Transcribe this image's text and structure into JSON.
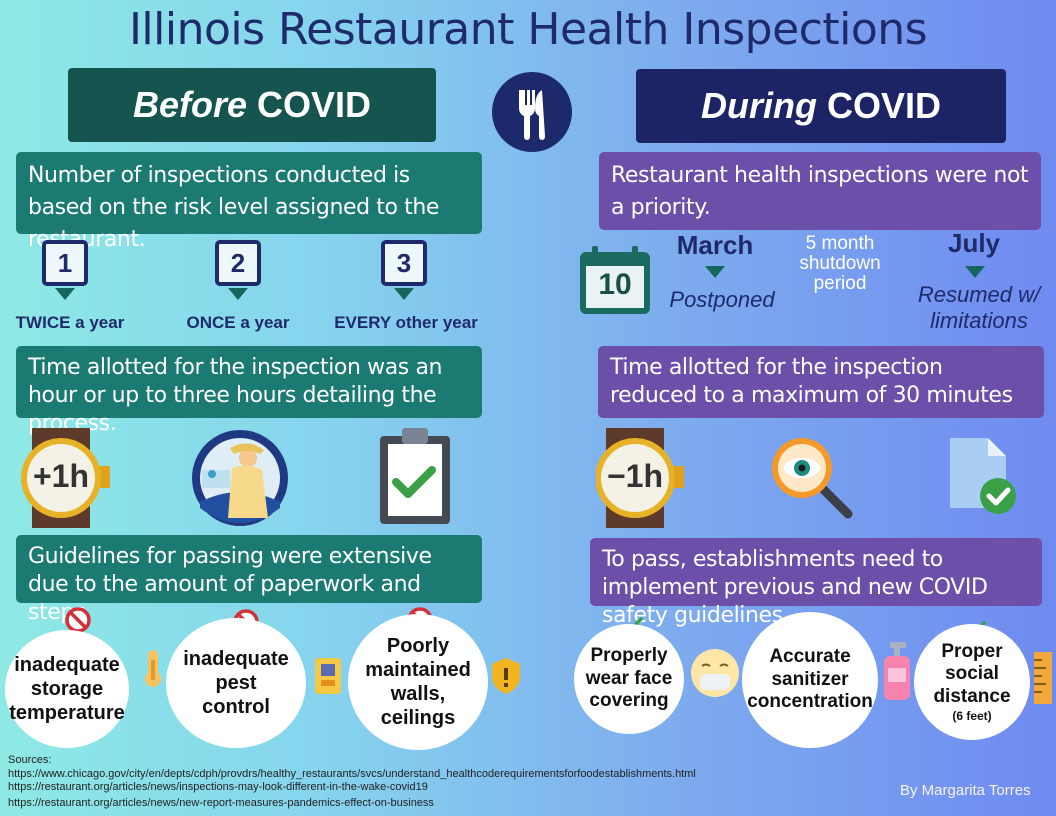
{
  "title": "Illinois Restaurant Health Inspections",
  "before": {
    "header_italic": "Before",
    "header_rest": "COVID",
    "box1": "Number of inspections conducted is based on the risk level assigned to the restaurant.",
    "levels": [
      {
        "num": "1",
        "freq": "TWICE a year"
      },
      {
        "num": "2",
        "freq": "ONCE a year"
      },
      {
        "num": "3",
        "freq": "EVERY other year"
      }
    ],
    "box2": "Time allotted for the inspection was an hour or up to three hours detailing the process.",
    "plus_label": "+1h",
    "box3": "Guidelines for passing were extensive due to the amount of paperwork and steps.",
    "failures": [
      "inadequate storage temperature",
      "inadequate pest control",
      "Poorly maintained walls, ceilings"
    ]
  },
  "during": {
    "header_italic": "During",
    "header_rest": "COVID",
    "box1": "Restaurant health inspections were not a priority.",
    "calendar_day": "10",
    "march": "March",
    "postponed": "Postponed",
    "shutdown": "5 month shutdown period",
    "july": "July",
    "resumed": "Resumed w/ limitations",
    "box2": "Time allotted for the inspection reduced to a maximum of 30 minutes",
    "minus_label": "−1h",
    "box3": "To pass, establishments need to implement previous and new COVID safety guidelines",
    "requirements": [
      {
        "text": "Properly wear face covering",
        "note": ""
      },
      {
        "text": "Accurate sanitizer concentration",
        "note": ""
      },
      {
        "text": "Proper social distance",
        "note": "(6 feet)"
      }
    ]
  },
  "sources_label": "Sources:",
  "sources": [
    "https://www.chicago.gov/city/en/depts/cdph/provdrs/healthy_restaurants/svcs/understand_healthcoderequirementsforfoodestablishments.html",
    "https://restaurant.org/articles/news/inspections-may-look-different-in-the-wake-covid19",
    "https://restaurant.org/articles/news/new-report-measures-pandemics-effect-on-business"
  ],
  "author": "By Margarita Torres",
  "colors": {
    "teal": "#1b7a72",
    "purple": "#6b4fa8",
    "navy": "#1f2a6b",
    "prohibit": "#d62f3a",
    "check": "#3aa048"
  }
}
